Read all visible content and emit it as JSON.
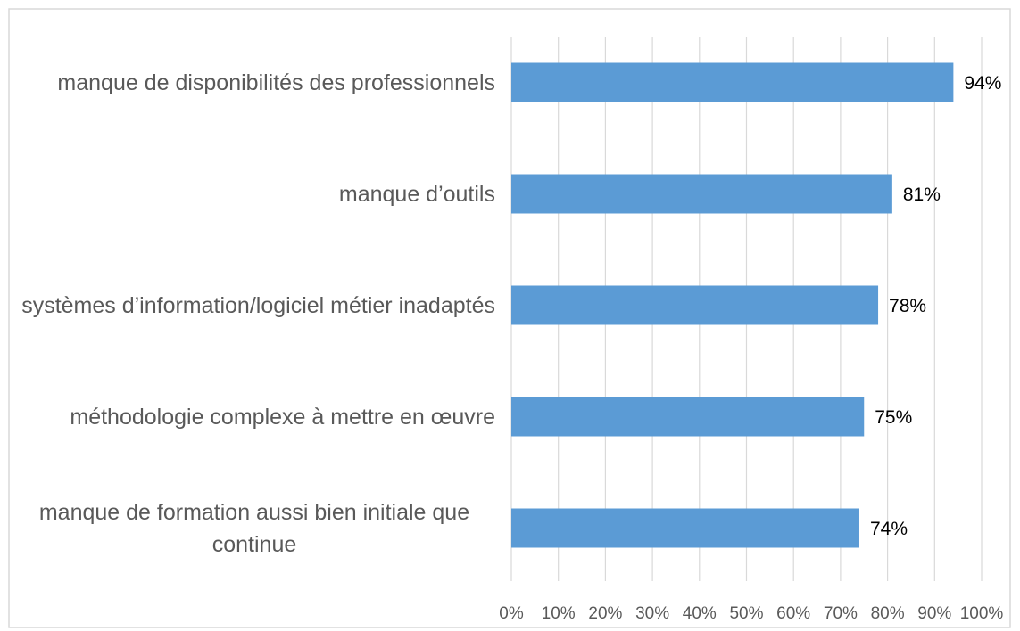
{
  "chart_data": {
    "type": "bar",
    "orientation": "horizontal",
    "categories": [
      "manque de disponibilités des professionnels",
      "manque d’outils",
      "systèmes d’information/logiciel métier inadaptés",
      "méthodologie complexe à mettre en œuvre",
      "manque de formation aussi bien initiale que continue"
    ],
    "values": [
      94,
      81,
      78,
      75,
      74
    ],
    "value_labels": [
      "94%",
      "81%",
      "78%",
      "75%",
      "74%"
    ],
    "color": "#5b9bd5",
    "xlim": [
      0,
      100
    ],
    "xticks": [
      {
        "value": 0,
        "label": "0%"
      },
      {
        "value": 10,
        "label": "10%"
      },
      {
        "value": 20,
        "label": "20%"
      },
      {
        "value": 30,
        "label": "30%"
      },
      {
        "value": 40,
        "label": "40%"
      },
      {
        "value": 50,
        "label": "50%"
      },
      {
        "value": 60,
        "label": "60%"
      },
      {
        "value": 70,
        "label": "70%"
      },
      {
        "value": 80,
        "label": "80%"
      },
      {
        "value": 90,
        "label": "90%"
      },
      {
        "value": 100,
        "label": "100%"
      }
    ],
    "grid": true
  }
}
